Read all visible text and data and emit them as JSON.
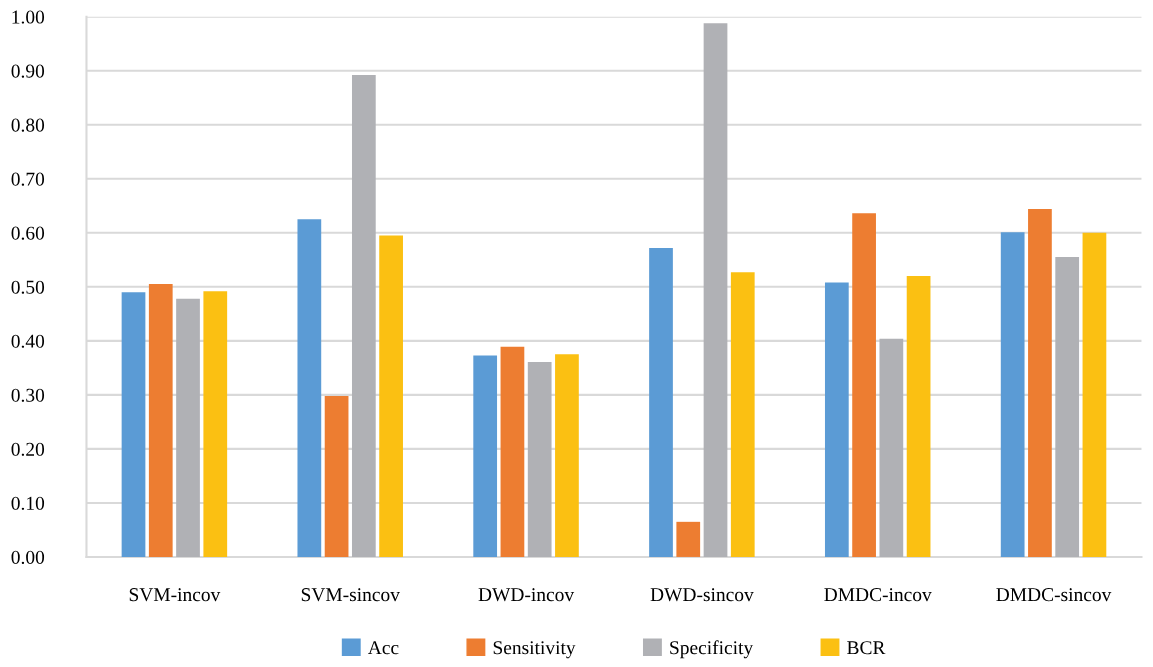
{
  "chart_data": {
    "type": "bar",
    "categories": [
      "SVM-incov",
      "SVM-sincov",
      "DWD-incov",
      "DWD-sincov",
      "DMDC-incov",
      "DMDC-sincov"
    ],
    "series": [
      {
        "name": "Acc",
        "color": "#5b9bd5",
        "values": [
          0.49,
          0.625,
          0.373,
          0.572,
          0.508,
          0.601
        ]
      },
      {
        "name": "Sensitivity",
        "color": "#ed7d31",
        "values": [
          0.505,
          0.298,
          0.389,
          0.065,
          0.636,
          0.644
        ]
      },
      {
        "name": "Specificity",
        "color": "#b0b1b5",
        "values": [
          0.478,
          0.892,
          0.361,
          0.988,
          0.404,
          0.555
        ]
      },
      {
        "name": "BCR",
        "color": "#fbc012",
        "values": [
          0.492,
          0.595,
          0.375,
          0.527,
          0.52,
          0.6
        ]
      }
    ],
    "ylim": [
      0,
      1
    ],
    "yticks": [
      {
        "value": 0,
        "label": "0.00"
      },
      {
        "value": 0.1,
        "label": "0.10"
      },
      {
        "value": 0.2,
        "label": "0.20"
      },
      {
        "value": 0.3,
        "label": "0.30"
      },
      {
        "value": 0.4,
        "label": "0.40"
      },
      {
        "value": 0.5,
        "label": "0.50"
      },
      {
        "value": 0.6,
        "label": "0.60"
      },
      {
        "value": 0.7,
        "label": "0.70"
      },
      {
        "value": 0.8,
        "label": "0.80"
      },
      {
        "value": 0.9,
        "label": "0.90"
      },
      {
        "value": 1,
        "label": "1.00"
      }
    ],
    "grid": "y",
    "legend": "bottom"
  }
}
